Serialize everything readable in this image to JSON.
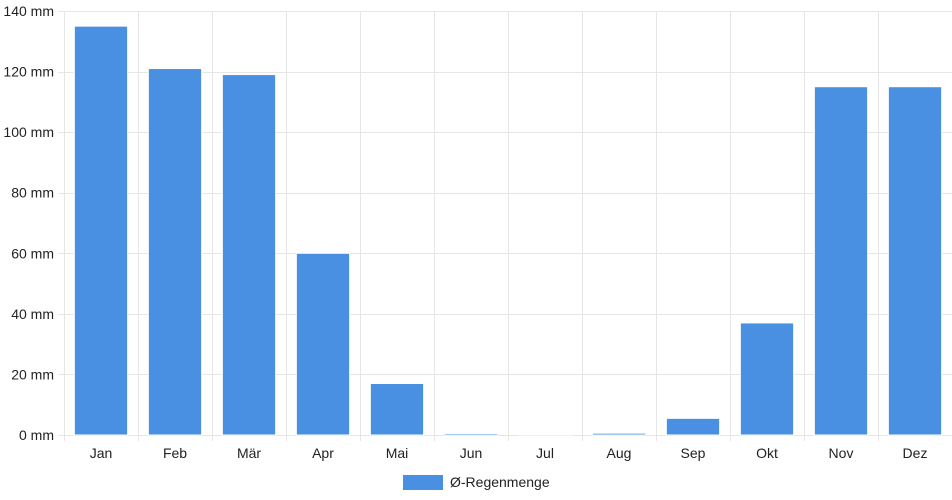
{
  "chart_data": {
    "type": "bar",
    "categories": [
      "Jan",
      "Feb",
      "Mär",
      "Apr",
      "Mai",
      "Jun",
      "Jul",
      "Aug",
      "Sep",
      "Okt",
      "Nov",
      "Dez"
    ],
    "series": [
      {
        "name": "Ø-Regenmenge",
        "values": [
          135,
          121,
          119,
          60,
          17,
          0.5,
          0.2,
          0.6,
          5.5,
          37,
          115,
          115
        ]
      }
    ],
    "ylim": [
      0,
      140
    ],
    "yticks": [
      0,
      20,
      40,
      60,
      80,
      100,
      120,
      140
    ],
    "ytick_labels": [
      "0 mm",
      "20 mm",
      "40 mm",
      "60 mm",
      "80 mm",
      "100 mm",
      "120 mm",
      "140 mm"
    ],
    "grid": true,
    "legend_placement": "bottom-center",
    "colors": {
      "bar": "#4a90e2",
      "bar_border": "#ffffff",
      "grid": "#e6e6e6",
      "axis_text": "#222222"
    }
  }
}
